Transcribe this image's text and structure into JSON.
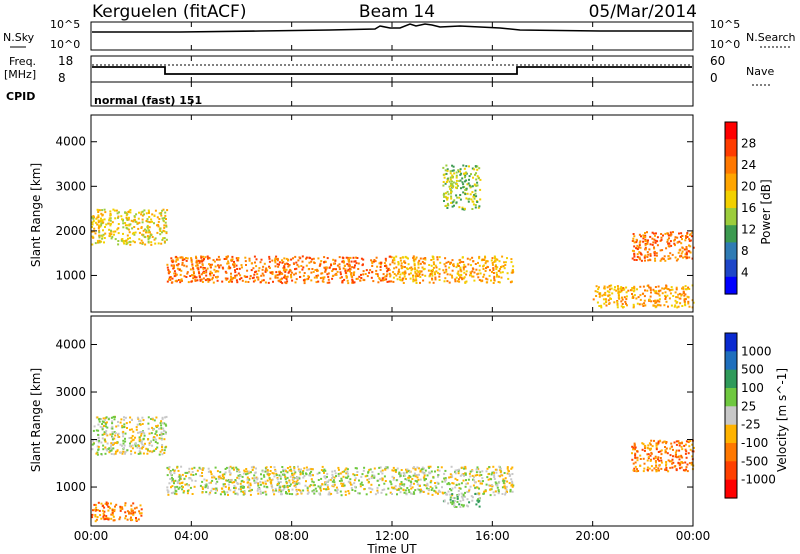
{
  "header": {
    "station": "Kerguelen (fitACF)",
    "beam": "Beam 14",
    "date": "05/Mar/2014"
  },
  "nsky_panel": {
    "left_label": "N.Sky",
    "right_label": "N.Search",
    "left_ticks": [
      "10^5",
      "10^0"
    ],
    "right_ticks": [
      "10^5",
      "10^0"
    ]
  },
  "freq_panel": {
    "left_label_line1": "Freq.",
    "left_label_line2": "[MHz]",
    "right_label": "Nave",
    "left_ticks": [
      "18",
      "8"
    ],
    "right_ticks": [
      "60",
      "0"
    ]
  },
  "cpid_panel": {
    "label": "CPID",
    "value": "normal (fast) 151"
  },
  "x_axis": {
    "label": "Time UT",
    "ticks": [
      "00:00",
      "04:00",
      "08:00",
      "12:00",
      "16:00",
      "20:00",
      "00:00"
    ]
  },
  "chart_data": [
    {
      "type": "heatmap",
      "title": "",
      "ylabel": "Slant Range [km]",
      "xlabel": "Time UT",
      "xlim": [
        "00:00",
        "24:00"
      ],
      "ylim": [
        180,
        4600
      ],
      "y_ticks": [
        "1000",
        "2000",
        "3000",
        "4000"
      ],
      "colorbar": {
        "label": "Power [dB]",
        "ticks": [
          "28",
          "24",
          "20",
          "16",
          "12",
          "8",
          "4"
        ],
        "colors": [
          "#ff0000",
          "#ff3c00",
          "#ff7800",
          "#ffa500",
          "#f2d000",
          "#9ccd3c",
          "#3c9a50",
          "#2f7bb4",
          "#1e46c8",
          "#0000ff"
        ],
        "range": [
          0,
          30
        ]
      },
      "scatter_regions": [
        {
          "t0": 0.0,
          "t1": 3.0,
          "r0": 1700,
          "r1": 2500,
          "value": 16
        },
        {
          "t0": 3.0,
          "t1": 12.0,
          "r0": 850,
          "r1": 1450,
          "value": 22
        },
        {
          "t0": 12.0,
          "t1": 16.8,
          "r0": 850,
          "r1": 1450,
          "value": 20
        },
        {
          "t0": 14.0,
          "t1": 15.5,
          "r0": 2500,
          "r1": 3500,
          "value": 14
        },
        {
          "t0": 21.5,
          "t1": 24.0,
          "r0": 1350,
          "r1": 2000,
          "value": 22
        },
        {
          "t0": 20.0,
          "t1": 24.0,
          "r0": 300,
          "r1": 800,
          "value": 20
        }
      ]
    },
    {
      "type": "heatmap",
      "title": "",
      "ylabel": "Slant Range [km]",
      "xlabel": "Time UT",
      "xlim": [
        "00:00",
        "24:00"
      ],
      "ylim": [
        180,
        4600
      ],
      "y_ticks": [
        "1000",
        "2000",
        "3000",
        "4000"
      ],
      "colorbar": {
        "label": "Velocity [m s^-1]",
        "ticks": [
          "1000",
          "500",
          "100",
          "25",
          "-25",
          "-100",
          "-500",
          "-1000"
        ],
        "colors": [
          "#0a2ad0",
          "#1f6fbd",
          "#2f9a5a",
          "#6fc840",
          "#c8c8c8",
          "#ffb300",
          "#ff7800",
          "#ff4000",
          "#ff0000"
        ]
      },
      "scatter_regions": [
        {
          "t0": 0.0,
          "t1": 3.0,
          "r0": 1700,
          "r1": 2500,
          "value": 0
        },
        {
          "t0": 3.0,
          "t1": 16.8,
          "r0": 850,
          "r1": 1450,
          "value": 0
        },
        {
          "t0": 14.0,
          "t1": 15.5,
          "r0": 600,
          "r1": 900,
          "value": 80
        },
        {
          "t0": 21.5,
          "t1": 24.0,
          "r0": 1350,
          "r1": 2000,
          "value": -150
        },
        {
          "t0": 0.0,
          "t1": 2.0,
          "r0": 300,
          "r1": 700,
          "value": -150
        }
      ]
    }
  ]
}
